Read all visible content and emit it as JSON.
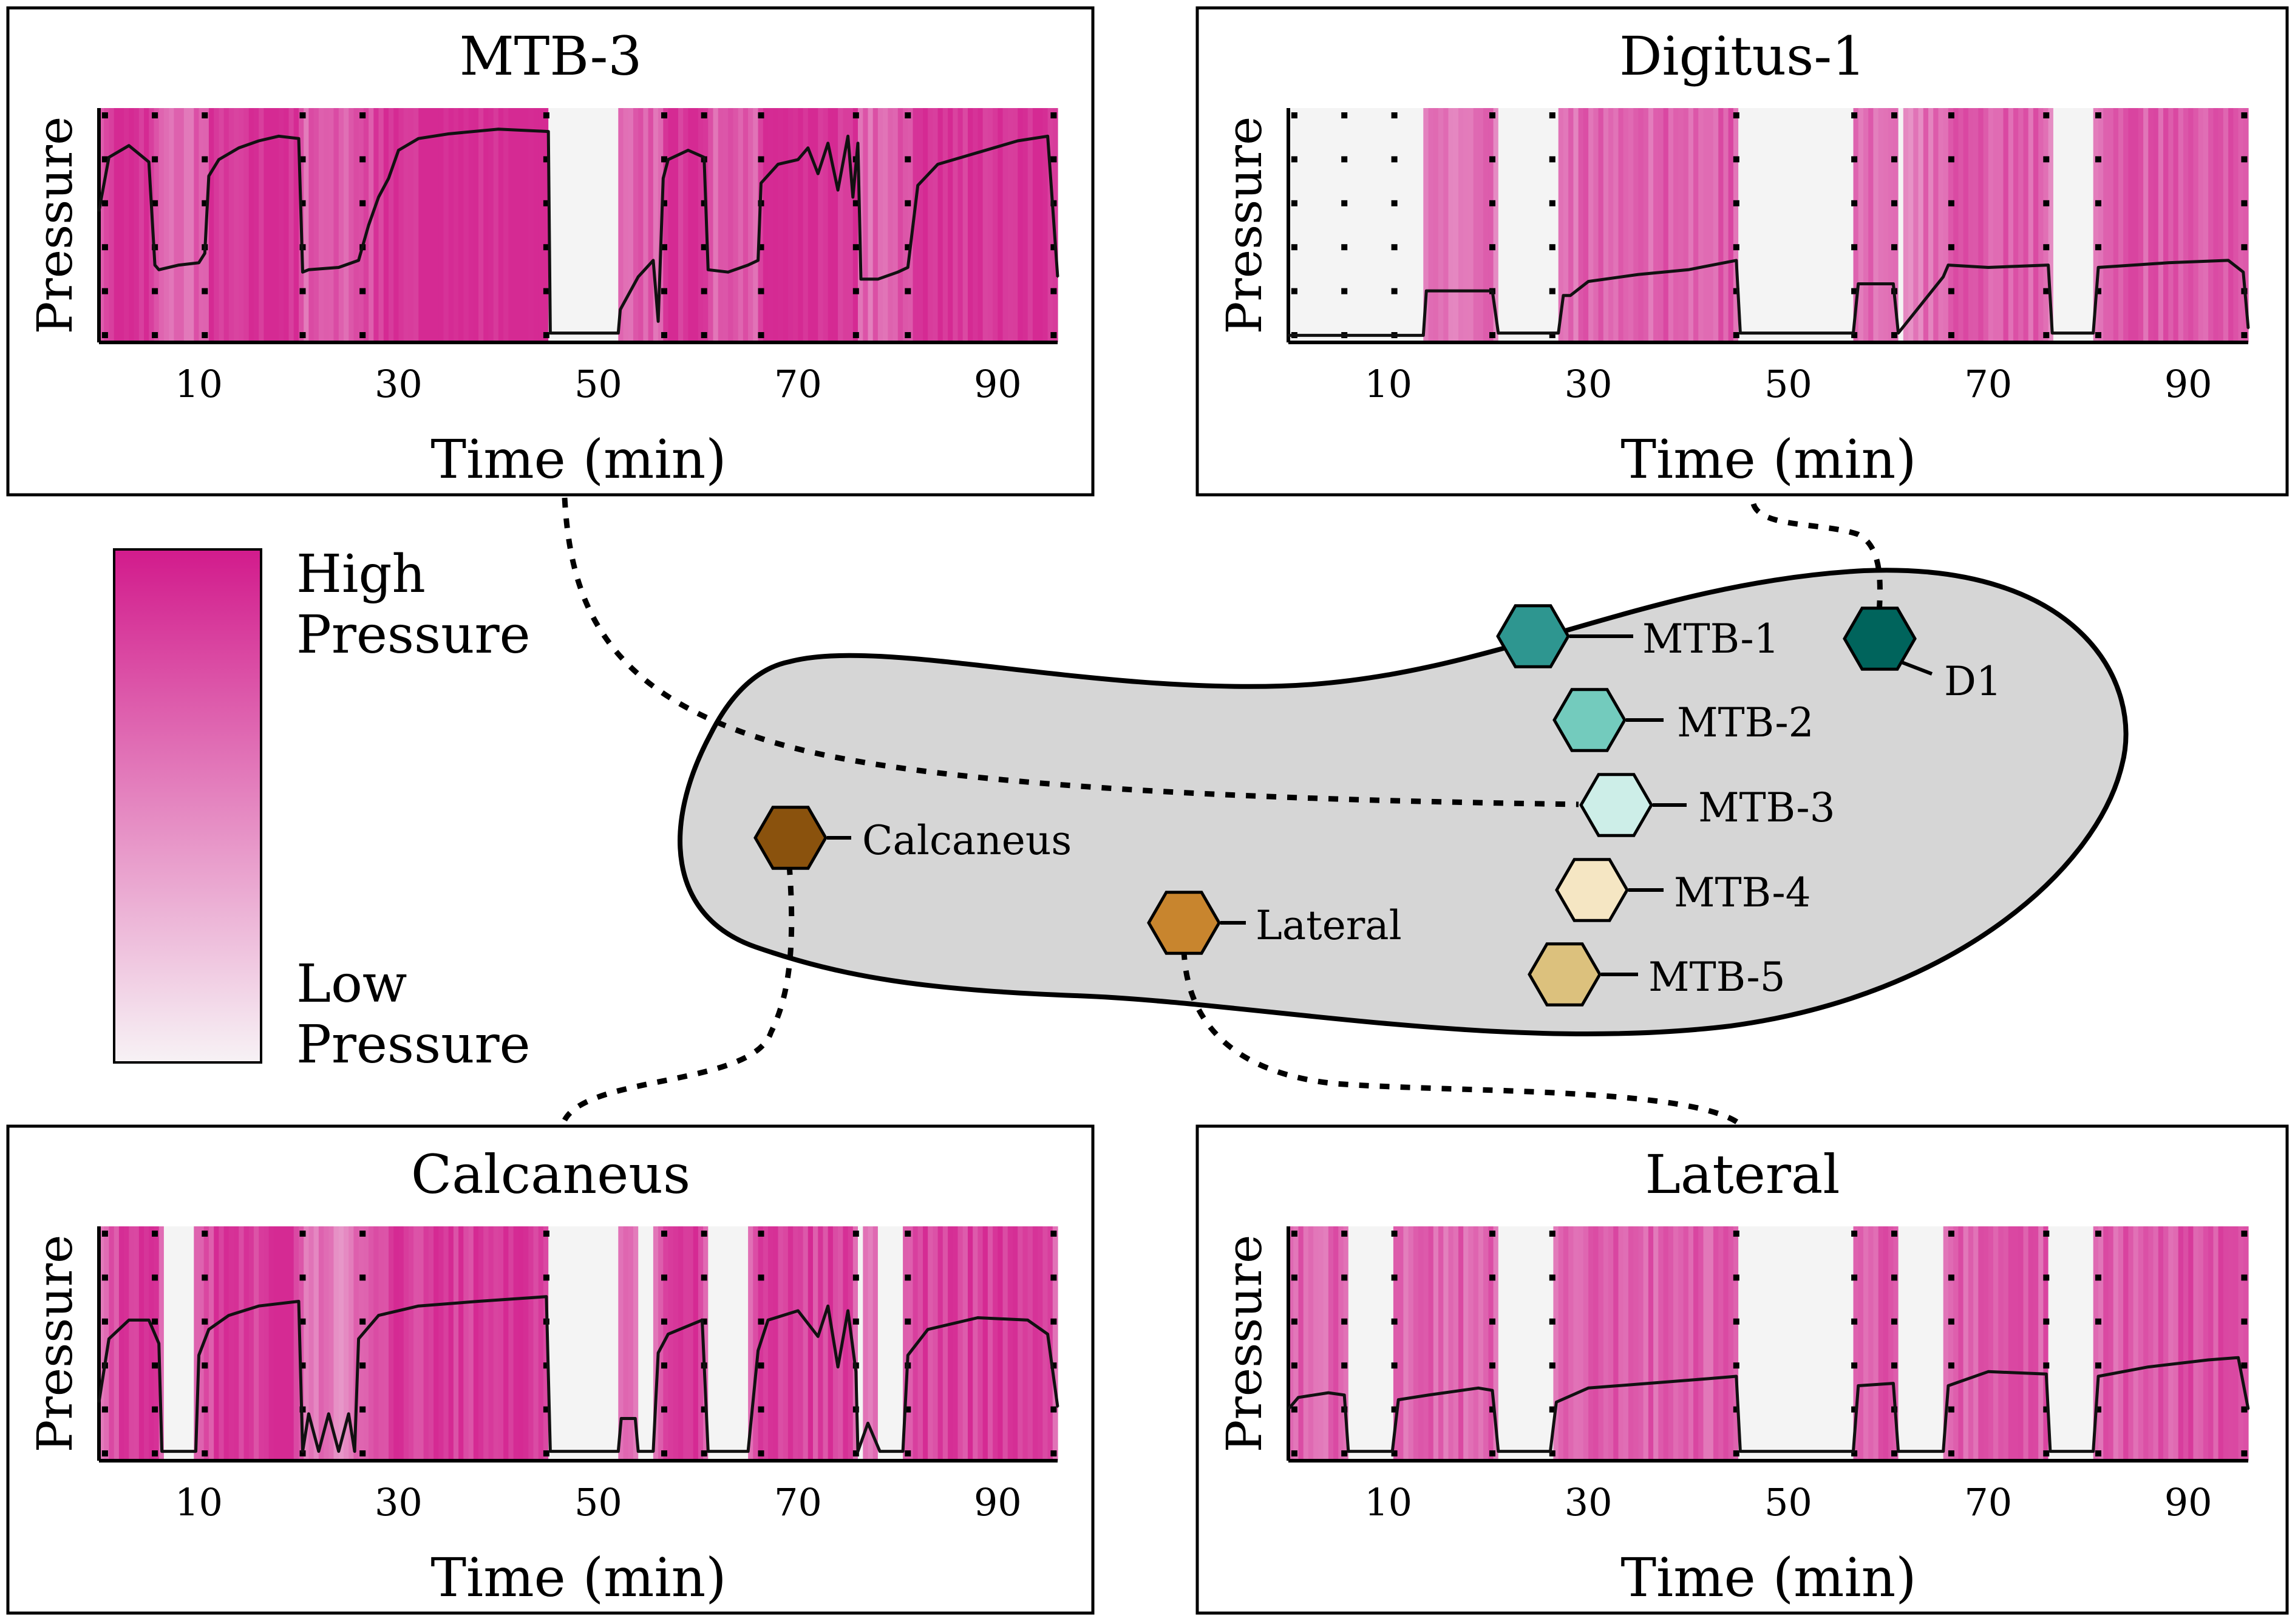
{
  "colors": {
    "high_pressure": "#d21b8c",
    "low_pressure": "#f7f2f5",
    "rest": "#f4f4f4",
    "insole_fill": "#d6d6d6"
  },
  "legend": {
    "high_line1": "High",
    "high_line2": "Pressure",
    "low_line1": "Low",
    "low_line2": "Pressure"
  },
  "sensors": [
    {
      "label": "MTB-1",
      "color": "#2e9690"
    },
    {
      "label": "MTB-2",
      "color": "#73cbbd"
    },
    {
      "label": "MTB-3",
      "color": "#cdeee8"
    },
    {
      "label": "MTB-4",
      "color": "#f5e6c3"
    },
    {
      "label": "MTB-5",
      "color": "#dcc17d"
    },
    {
      "label": "D1",
      "color": "#00645c"
    },
    {
      "label": "Calcaneus",
      "color": "#8a520d"
    },
    {
      "label": "Lateral",
      "color": "#c8852e"
    }
  ],
  "chart_data": [
    {
      "type": "line",
      "title": "MTB-3",
      "xlabel": "Time (min)",
      "ylabel": "Pressure",
      "xticks": [
        10,
        30,
        50,
        70,
        90
      ],
      "xlim": [
        0,
        96
      ],
      "ylim": [
        0,
        1
      ],
      "background": "heat-band colored by pressure (white = low, magenta = high)",
      "x": [
        0,
        1,
        3,
        5,
        5.6,
        6,
        8,
        10,
        10.6,
        11,
        12,
        14,
        16,
        18,
        20,
        20.4,
        21,
        24,
        26,
        27,
        28,
        29,
        30,
        32,
        35,
        40,
        45,
        45.2,
        47,
        50,
        52,
        52.2,
        54,
        55.5,
        56,
        56.5,
        57,
        59,
        60.6,
        61,
        63,
        65,
        66,
        66.3,
        68,
        70,
        71,
        72,
        73,
        74,
        75,
        75.5,
        76,
        76.3,
        78,
        80,
        81,
        82,
        84,
        88,
        92,
        95,
        96
      ],
      "y": [
        0.56,
        0.79,
        0.84,
        0.77,
        0.33,
        0.31,
        0.33,
        0.34,
        0.38,
        0.71,
        0.78,
        0.83,
        0.86,
        0.88,
        0.87,
        0.3,
        0.31,
        0.32,
        0.35,
        0.5,
        0.62,
        0.7,
        0.82,
        0.87,
        0.89,
        0.91,
        0.9,
        0.04,
        0.04,
        0.04,
        0.04,
        0.14,
        0.28,
        0.35,
        0.09,
        0.7,
        0.78,
        0.82,
        0.79,
        0.31,
        0.3,
        0.33,
        0.35,
        0.68,
        0.76,
        0.78,
        0.83,
        0.72,
        0.85,
        0.65,
        0.88,
        0.62,
        0.85,
        0.27,
        0.27,
        0.3,
        0.32,
        0.67,
        0.76,
        0.81,
        0.86,
        0.88,
        0.28
      ]
    },
    {
      "type": "line",
      "title": "Digitus-1",
      "xlabel": "Time (min)",
      "ylabel": "Pressure",
      "xticks": [
        10,
        30,
        50,
        70,
        90
      ],
      "xlim": [
        0,
        96
      ],
      "ylim": [
        0,
        1
      ],
      "background": "heat-band colored by pressure (white = low, magenta = high)",
      "x": [
        0,
        13.5,
        13.8,
        20.4,
        21,
        27,
        27.5,
        28.2,
        30,
        35,
        40,
        44.8,
        45.2,
        56.5,
        57,
        60.5,
        61,
        65.5,
        66,
        70,
        76,
        76.4,
        80.5,
        81,
        88,
        94,
        95.5,
        96
      ],
      "y": [
        0.03,
        0.03,
        0.22,
        0.22,
        0.04,
        0.04,
        0.2,
        0.2,
        0.26,
        0.29,
        0.31,
        0.35,
        0.04,
        0.04,
        0.25,
        0.25,
        0.04,
        0.28,
        0.33,
        0.32,
        0.33,
        0.04,
        0.04,
        0.32,
        0.34,
        0.35,
        0.3,
        0.06
      ]
    },
    {
      "type": "line",
      "title": "Calcaneus",
      "xlabel": "Time (min)",
      "ylabel": "Pressure",
      "xticks": [
        10,
        30,
        50,
        70,
        90
      ],
      "xlim": [
        0,
        96
      ],
      "ylim": [
        0,
        1
      ],
      "background": "heat-band colored by pressure (white = low, magenta = high)",
      "x": [
        0,
        1,
        3,
        5,
        6,
        6.3,
        9.7,
        10,
        11,
        13,
        16,
        20,
        20.4,
        21,
        22,
        23,
        24,
        25,
        25.6,
        26,
        28,
        32,
        38,
        44.8,
        45.2,
        52,
        52.3,
        53.7,
        54,
        55.5,
        56,
        57,
        60.4,
        61,
        65,
        66,
        67,
        70,
        72,
        73,
        74,
        75,
        75.8,
        76,
        77,
        78.2,
        78.5,
        80.5,
        81,
        83,
        88,
        93,
        95,
        96
      ],
      "y": [
        0.25,
        0.52,
        0.6,
        0.6,
        0.5,
        0.04,
        0.04,
        0.45,
        0.56,
        0.62,
        0.66,
        0.68,
        0.04,
        0.2,
        0.04,
        0.2,
        0.04,
        0.2,
        0.04,
        0.52,
        0.62,
        0.66,
        0.68,
        0.7,
        0.04,
        0.04,
        0.18,
        0.18,
        0.04,
        0.04,
        0.46,
        0.54,
        0.6,
        0.04,
        0.04,
        0.47,
        0.6,
        0.64,
        0.53,
        0.66,
        0.4,
        0.64,
        0.38,
        0.04,
        0.16,
        0.04,
        0.04,
        0.04,
        0.45,
        0.56,
        0.61,
        0.6,
        0.54,
        0.23
      ]
    },
    {
      "type": "line",
      "title": "Lateral",
      "xlabel": "Time (min)",
      "ylabel": "Pressure",
      "xticks": [
        10,
        30,
        50,
        70,
        90
      ],
      "xlim": [
        0,
        96
      ],
      "ylim": [
        0,
        1
      ],
      "background": "heat-band colored by pressure (white = low, magenta = high)",
      "x": [
        0,
        1,
        4,
        5.6,
        6,
        10.4,
        11,
        14,
        19,
        20.4,
        21,
        26.2,
        26.8,
        30,
        36,
        42,
        44.8,
        45.2,
        56.5,
        57,
        60.5,
        61,
        65.5,
        66,
        70,
        75.8,
        76.2,
        80.5,
        81,
        86,
        92,
        95,
        96
      ],
      "y": [
        0.22,
        0.27,
        0.29,
        0.28,
        0.04,
        0.04,
        0.26,
        0.28,
        0.31,
        0.3,
        0.04,
        0.04,
        0.25,
        0.31,
        0.33,
        0.35,
        0.36,
        0.04,
        0.04,
        0.32,
        0.33,
        0.04,
        0.04,
        0.32,
        0.38,
        0.37,
        0.04,
        0.04,
        0.36,
        0.4,
        0.43,
        0.44,
        0.22
      ]
    }
  ]
}
